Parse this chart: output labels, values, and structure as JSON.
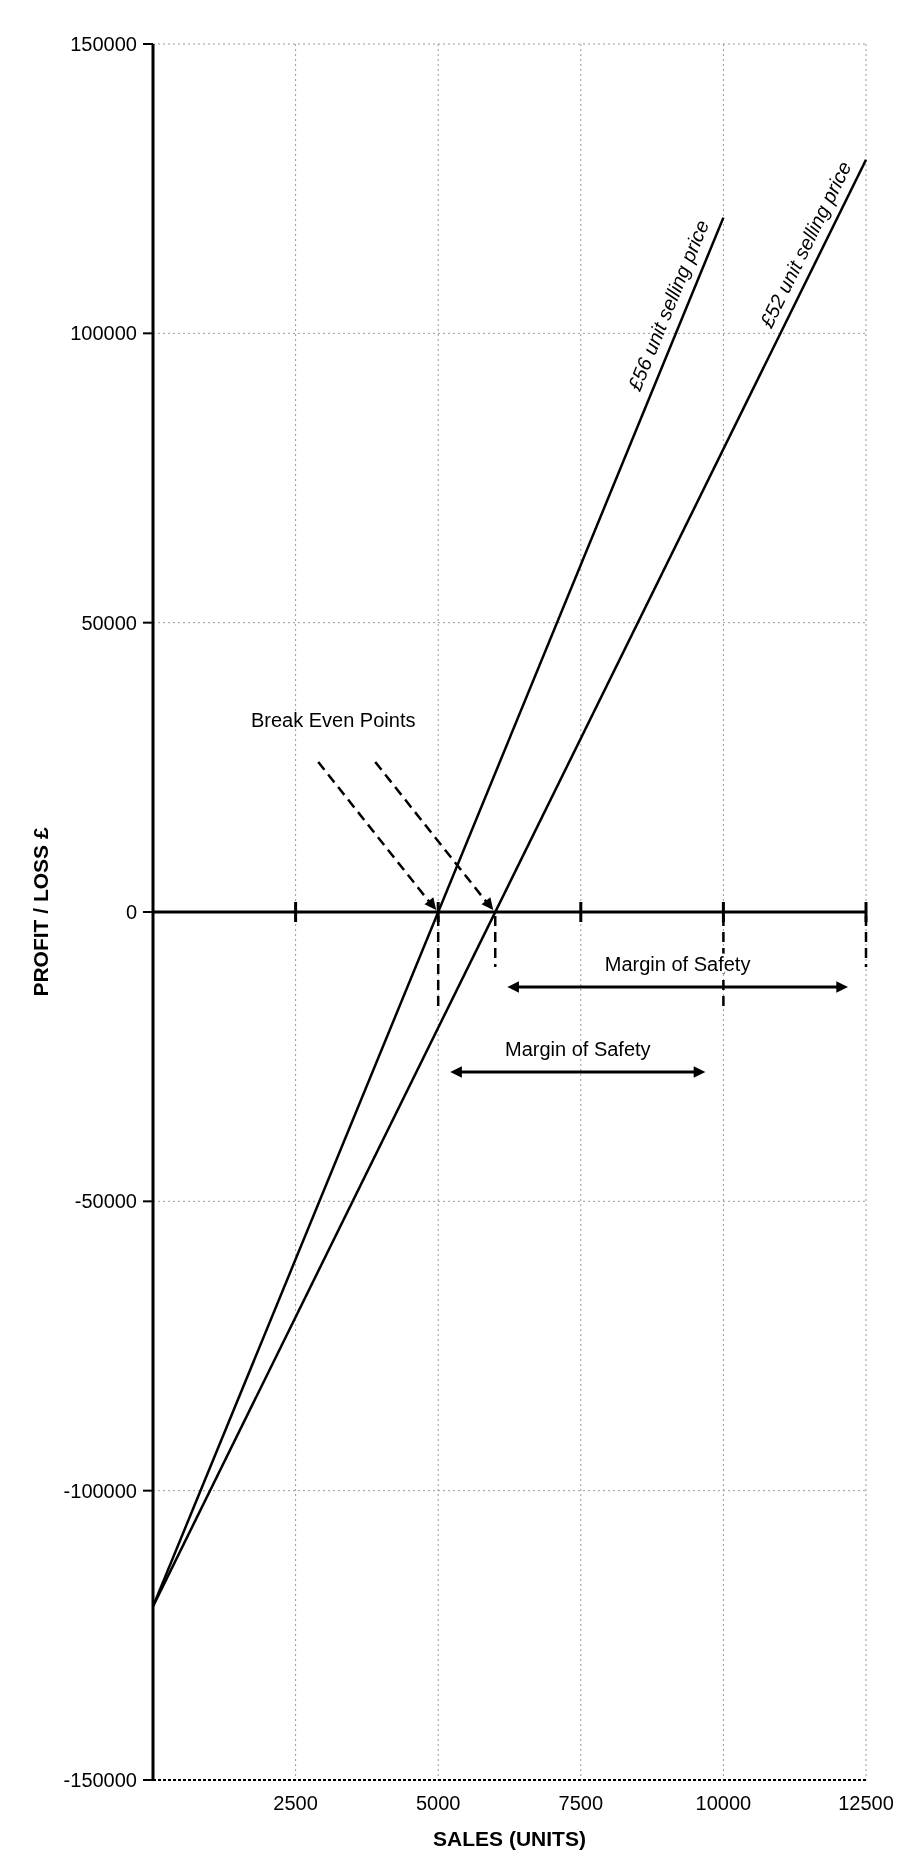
{
  "chart_data": {
    "type": "line",
    "xlabel": "SALES (UNITS)",
    "ylabel": "PROFIT / LOSS £",
    "series": [
      {
        "name": "£56 unit selling price",
        "color": "#000000",
        "x": [
          0,
          10000
        ],
        "values": [
          -120000,
          120000
        ]
      },
      {
        "name": "£52 unit selling price",
        "color": "#000000",
        "x": [
          0,
          12500
        ],
        "values": [
          -120000,
          130000
        ]
      }
    ],
    "xlim": [
      0,
      12500
    ],
    "xticks": [
      2500,
      5000,
      7500,
      10000,
      12500
    ],
    "ylim": [
      -150000,
      150000
    ],
    "yticks": [
      -150000,
      -100000,
      -50000,
      0,
      50000,
      100000,
      150000
    ],
    "grid": true,
    "marker": "none",
    "line_style": "solid",
    "annotations": [
      "Break Even Points",
      "Margin of Safety",
      "Margin of Safety"
    ]
  }
}
